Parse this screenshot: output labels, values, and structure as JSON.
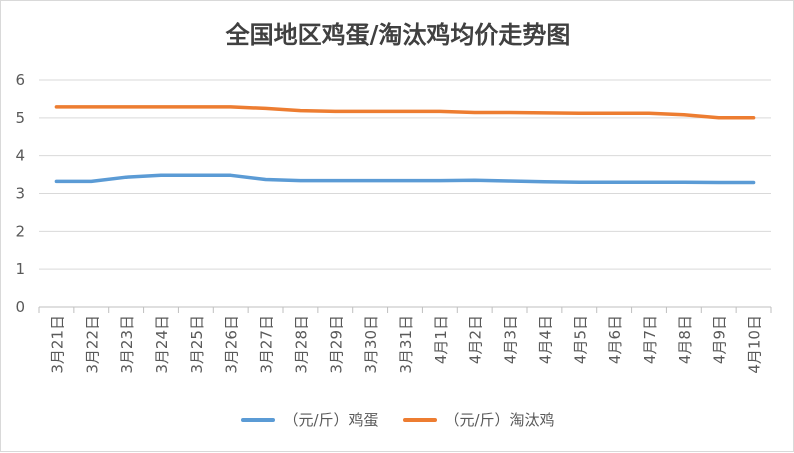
{
  "chart_data": {
    "type": "line",
    "title": "全国地区鸡蛋/淘汰鸡均价走势图",
    "categories": [
      "3月21日",
      "3月22日",
      "3月23日",
      "3月24日",
      "3月25日",
      "3月26日",
      "3月27日",
      "3月28日",
      "3月29日",
      "3月30日",
      "3月31日",
      "4月1日",
      "4月2日",
      "4月3日",
      "4月4日",
      "4月5日",
      "4月6日",
      "4月7日",
      "4月8日",
      "4月9日",
      "4月10日"
    ],
    "series": [
      {
        "name": "（元/斤）鸡蛋",
        "color": "#5b9bd5",
        "values": [
          3.32,
          3.32,
          3.43,
          3.48,
          3.48,
          3.48,
          3.37,
          3.34,
          3.34,
          3.34,
          3.34,
          3.34,
          3.35,
          3.33,
          3.31,
          3.3,
          3.3,
          3.3,
          3.3,
          3.29,
          3.29
        ]
      },
      {
        "name": "（元/斤）淘汰鸡",
        "color": "#ed7d31",
        "values": [
          5.29,
          5.29,
          5.29,
          5.29,
          5.29,
          5.29,
          5.25,
          5.19,
          5.17,
          5.17,
          5.17,
          5.17,
          5.14,
          5.14,
          5.13,
          5.12,
          5.12,
          5.12,
          5.08,
          5.0,
          5.0
        ]
      }
    ],
    "ylim": [
      0,
      6
    ],
    "yticks": [
      0,
      1,
      2,
      3,
      4,
      5,
      6
    ],
    "grid": true,
    "legend": "bottom"
  }
}
